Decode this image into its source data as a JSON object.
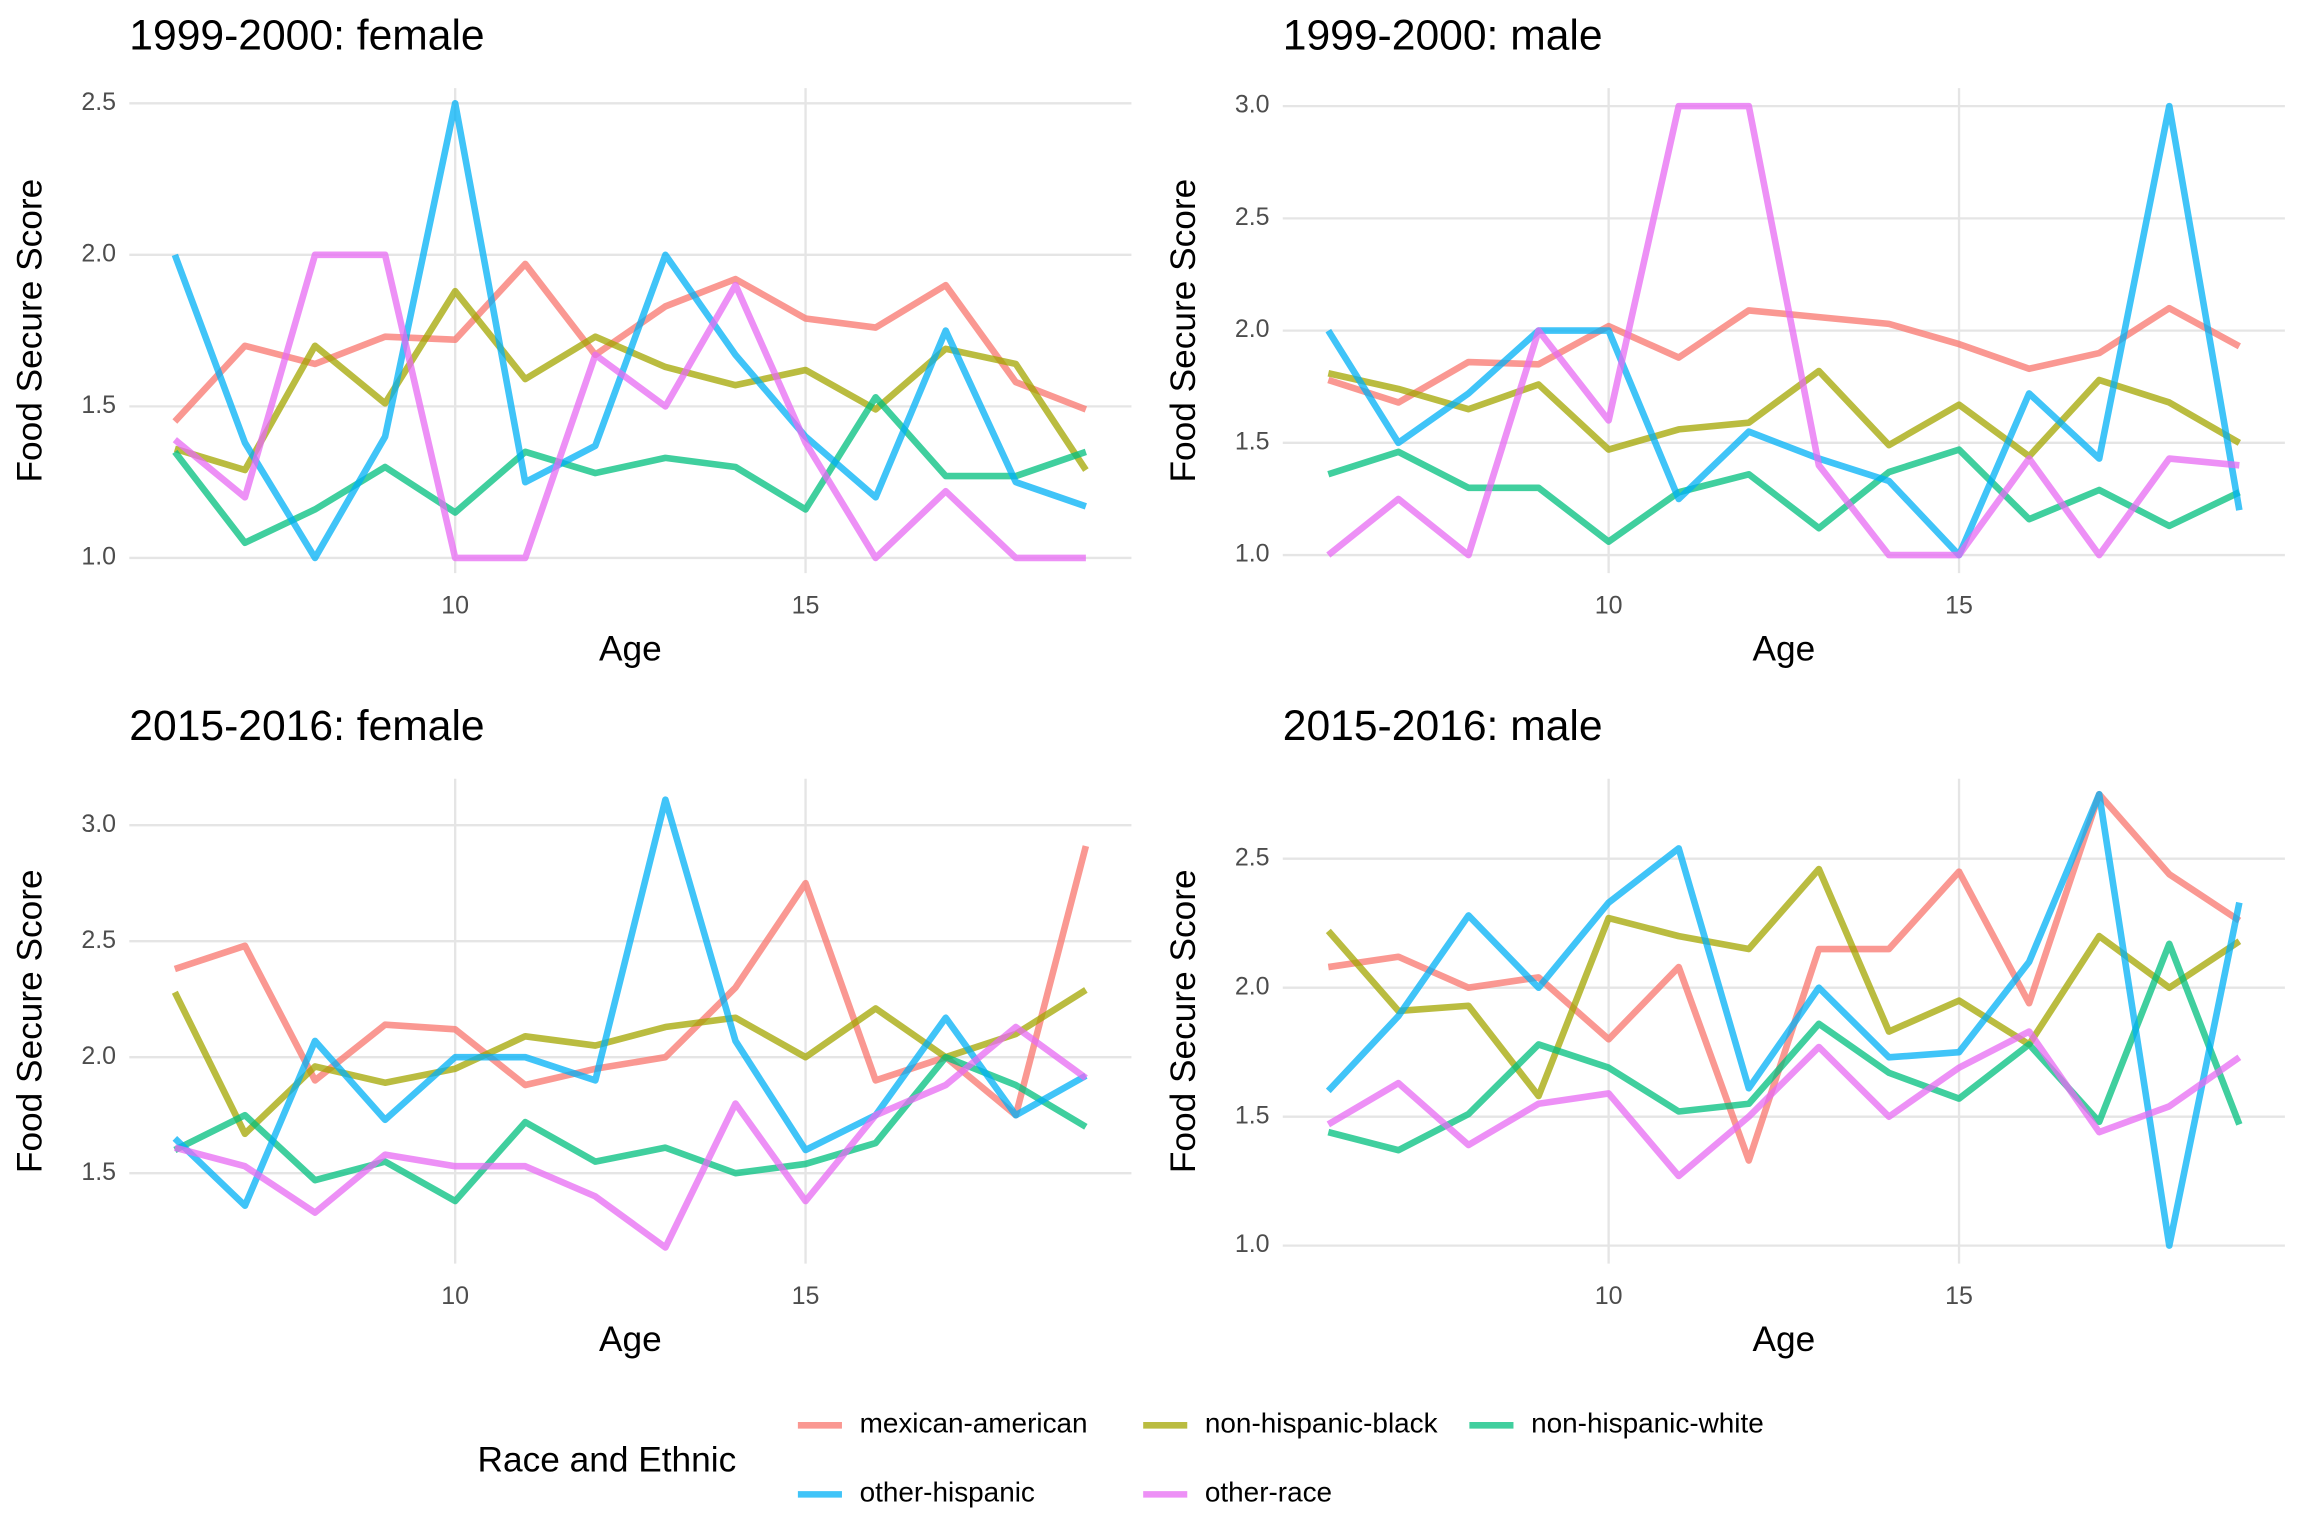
{
  "chart_data": [
    {
      "type": "line",
      "title": "1999-2000: female",
      "x_label": "Age",
      "y_label": "Food Secure Score",
      "x": [
        6,
        7,
        8,
        9,
        10,
        11,
        12,
        13,
        14,
        15,
        16,
        17,
        18,
        19
      ],
      "xlim": [
        5.35,
        19.65
      ],
      "xticks": [
        10,
        15
      ],
      "ylim": [
        0.95,
        2.55
      ],
      "yticks": [
        {
          "value": 1,
          "label": "1.0"
        },
        1.5,
        {
          "value": 2,
          "label": "2.0"
        },
        2.5
      ],
      "grid": true,
      "series": [
        {
          "name": "mexican-american",
          "color": "#F8766D",
          "values": [
            1.45,
            1.7,
            1.64,
            1.73,
            1.72,
            1.97,
            1.67,
            1.83,
            1.92,
            1.79,
            1.76,
            1.9,
            1.58,
            1.49
          ]
        },
        {
          "name": "non-hispanic-black",
          "color": "#A3A500",
          "values": [
            1.36,
            1.29,
            1.7,
            1.51,
            1.88,
            1.59,
            1.73,
            1.63,
            1.57,
            1.62,
            1.49,
            1.69,
            1.64,
            1.29
          ]
        },
        {
          "name": "non-hispanic-white",
          "color": "#00BF7D",
          "values": [
            1.35,
            1.05,
            1.16,
            1.3,
            1.15,
            1.35,
            1.28,
            1.33,
            1.3,
            1.16,
            1.53,
            1.27,
            1.27,
            1.35
          ]
        },
        {
          "name": "other-hispanic",
          "color": "#00B0F6",
          "values": [
            2.0,
            1.38,
            1.0,
            1.4,
            2.5,
            1.25,
            1.37,
            2.0,
            1.67,
            1.4,
            1.2,
            1.75,
            1.25,
            1.17
          ]
        },
        {
          "name": "other-race",
          "color": "#E76BF3",
          "values": [
            1.39,
            1.2,
            2.0,
            2.0,
            1.0,
            1.0,
            1.67,
            1.5,
            1.9,
            1.38,
            1.0,
            1.22,
            1.0,
            1.0
          ]
        }
      ]
    },
    {
      "type": "line",
      "title": "1999-2000: male",
      "x_label": "Age",
      "y_label": "Food Secure Score",
      "x": [
        6,
        7,
        8,
        9,
        10,
        11,
        12,
        13,
        14,
        15,
        16,
        17,
        18,
        19
      ],
      "xlim": [
        5.35,
        19.65
      ],
      "xticks": [
        10,
        15
      ],
      "ylim": [
        0.92,
        3.08
      ],
      "yticks": [
        {
          "value": 1,
          "label": "1.0"
        },
        1.5,
        {
          "value": 2,
          "label": "2.0"
        },
        2.5,
        {
          "value": 3,
          "label": "3.0"
        }
      ],
      "grid": true,
      "series": [
        {
          "name": "mexican-american",
          "color": "#F8766D",
          "values": [
            1.78,
            1.68,
            1.86,
            1.85,
            2.02,
            1.88,
            2.09,
            2.06,
            2.03,
            1.94,
            1.83,
            1.9,
            2.1,
            1.93
          ]
        },
        {
          "name": "non-hispanic-black",
          "color": "#A3A500",
          "values": [
            1.81,
            1.74,
            1.65,
            1.76,
            1.47,
            1.56,
            1.59,
            1.82,
            1.49,
            1.67,
            1.44,
            1.78,
            1.68,
            1.5
          ]
        },
        {
          "name": "non-hispanic-white",
          "color": "#00BF7D",
          "values": [
            1.36,
            1.46,
            1.3,
            1.3,
            1.06,
            1.28,
            1.36,
            1.12,
            1.37,
            1.47,
            1.16,
            1.29,
            1.13,
            1.28
          ]
        },
        {
          "name": "other-hispanic",
          "color": "#00B0F6",
          "values": [
            2.0,
            1.5,
            1.72,
            2.0,
            2.0,
            1.25,
            1.55,
            1.43,
            1.33,
            1.0,
            1.72,
            1.43,
            3.0,
            1.2
          ]
        },
        {
          "name": "other-race",
          "color": "#E76BF3",
          "values": [
            1.0,
            1.25,
            1.0,
            2.0,
            1.6,
            3.0,
            3.0,
            1.4,
            1.0,
            1.0,
            1.43,
            1.0,
            1.43,
            1.4
          ]
        }
      ]
    },
    {
      "type": "line",
      "title": "2015-2016: female",
      "x_label": "Age",
      "y_label": "Food Secure Score",
      "x": [
        6,
        7,
        8,
        9,
        10,
        11,
        12,
        13,
        14,
        15,
        16,
        17,
        18,
        19
      ],
      "xlim": [
        5.35,
        19.65
      ],
      "xticks": [
        10,
        15
      ],
      "ylim": [
        1.11,
        3.2
      ],
      "yticks": [
        1.5,
        {
          "value": 2,
          "label": "2.0"
        },
        2.5,
        {
          "value": 3,
          "label": "3.0"
        }
      ],
      "grid": true,
      "series": [
        {
          "name": "mexican-american",
          "color": "#F8766D",
          "values": [
            2.38,
            2.48,
            1.9,
            2.14,
            2.12,
            1.88,
            1.95,
            2.0,
            2.3,
            2.75,
            1.9,
            2.0,
            1.75,
            2.91
          ]
        },
        {
          "name": "non-hispanic-black",
          "color": "#A3A500",
          "values": [
            2.28,
            1.67,
            1.96,
            1.89,
            1.95,
            2.09,
            2.05,
            2.13,
            2.17,
            2.0,
            2.21,
            2.0,
            2.1,
            2.29
          ]
        },
        {
          "name": "non-hispanic-white",
          "color": "#00BF7D",
          "values": [
            1.6,
            1.75,
            1.47,
            1.55,
            1.38,
            1.72,
            1.55,
            1.61,
            1.5,
            1.54,
            1.63,
            2.0,
            1.88,
            1.7
          ]
        },
        {
          "name": "other-hispanic",
          "color": "#00B0F6",
          "values": [
            1.65,
            1.36,
            2.07,
            1.73,
            2.0,
            2.0,
            1.9,
            3.11,
            2.07,
            1.6,
            1.75,
            2.17,
            1.75,
            1.92
          ]
        },
        {
          "name": "other-race",
          "color": "#E76BF3",
          "values": [
            1.61,
            1.53,
            1.33,
            1.58,
            1.53,
            1.53,
            1.4,
            1.18,
            1.8,
            1.38,
            1.75,
            1.88,
            2.13,
            1.91
          ]
        }
      ]
    },
    {
      "type": "line",
      "title": "2015-2016: male",
      "x_label": "Age",
      "y_label": "Food Secure Score",
      "x": [
        6,
        7,
        8,
        9,
        10,
        11,
        12,
        13,
        14,
        15,
        16,
        17,
        18,
        19
      ],
      "xlim": [
        5.35,
        19.65
      ],
      "xticks": [
        10,
        15
      ],
      "ylim": [
        0.93,
        2.81
      ],
      "yticks": [
        {
          "value": 1,
          "label": "1.0"
        },
        1.5,
        {
          "value": 2,
          "label": "2.0"
        },
        2.5
      ],
      "grid": true,
      "series": [
        {
          "name": "mexican-american",
          "color": "#F8766D",
          "values": [
            2.08,
            2.12,
            2.0,
            2.04,
            1.8,
            2.08,
            1.33,
            2.15,
            2.15,
            2.45,
            1.94,
            2.75,
            2.44,
            2.26
          ]
        },
        {
          "name": "non-hispanic-black",
          "color": "#A3A500",
          "values": [
            2.22,
            1.91,
            1.93,
            1.58,
            2.27,
            2.2,
            2.15,
            2.46,
            1.83,
            1.95,
            1.78,
            2.2,
            2.0,
            2.18
          ]
        },
        {
          "name": "non-hispanic-white",
          "color": "#00BF7D",
          "values": [
            1.44,
            1.37,
            1.51,
            1.78,
            1.69,
            1.52,
            1.55,
            1.86,
            1.67,
            1.57,
            1.78,
            1.48,
            2.17,
            1.47
          ]
        },
        {
          "name": "other-hispanic",
          "color": "#00B0F6",
          "values": [
            1.6,
            1.89,
            2.28,
            2.0,
            2.33,
            2.54,
            1.61,
            2.0,
            1.73,
            1.75,
            2.1,
            2.75,
            1.0,
            2.33
          ]
        },
        {
          "name": "other-race",
          "color": "#E76BF3",
          "values": [
            1.47,
            1.63,
            1.39,
            1.55,
            1.59,
            1.27,
            1.5,
            1.77,
            1.5,
            1.69,
            1.83,
            1.44,
            1.54,
            1.73
          ]
        }
      ]
    }
  ],
  "legend_title": "Race and Ethnic"
}
